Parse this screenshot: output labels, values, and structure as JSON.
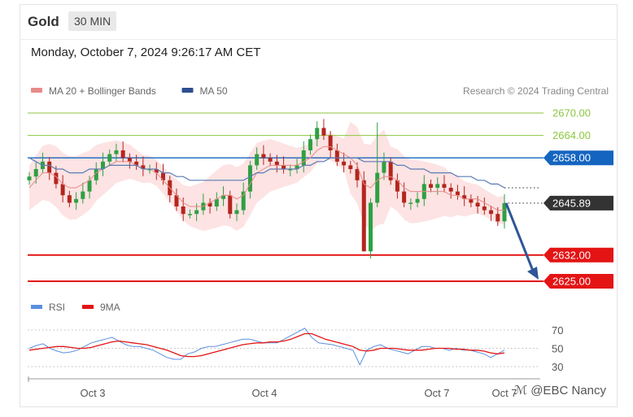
{
  "header": {
    "title": "Gold",
    "timeframe": "30 MIN"
  },
  "datetime": "Monday, October 7, 2024 9:26:17 AM CET",
  "legend": [
    {
      "label": "MA 20 + Bollinger Bands",
      "color": "#e88a8a"
    },
    {
      "label": "MA 50",
      "color": "#2d4e8f"
    }
  ],
  "copyright": "Research © 2024 Trading Central",
  "watermark": "ℳ @EBC Nancy",
  "colors": {
    "up": "#2ea043",
    "down": "#b3261e",
    "band_fill": "#fde3e3",
    "ma20": "#e88a8a",
    "ma50": "#5b7bb5",
    "resistance": "#8cc63f",
    "pivot": "#1565c0",
    "support": "#e41414",
    "price_tag": "#333333",
    "arrow": "#2f5597",
    "rsi": "#5b8fe0",
    "rsi_ma": "#e41414"
  },
  "chart_data": [
    {
      "type": "candlestick",
      "title": "Gold 30 MIN",
      "ylim": [
        2621,
        2672
      ],
      "levels": [
        {
          "value": 2670.0,
          "label": "2670.00",
          "kind": "resistance"
        },
        {
          "value": 2664.0,
          "label": "2664.00",
          "kind": "resistance"
        },
        {
          "value": 2658.0,
          "label": "2658.00",
          "kind": "pivot"
        },
        {
          "value": 2645.89,
          "label": "2645.89",
          "kind": "last-price"
        },
        {
          "value": 2632.0,
          "label": "2632.00",
          "kind": "support"
        },
        {
          "value": 2625.0,
          "label": "2625.00",
          "kind": "support"
        }
      ],
      "x_tick_labels": [
        "Oct 3",
        "Oct 4",
        "Oct 7",
        "Oct 7"
      ],
      "forecast_arrow": {
        "from": 2645.89,
        "to": 2625.0
      },
      "close_series": [
        2653,
        2655,
        2657,
        2654,
        2651,
        2648,
        2646,
        2647,
        2649,
        2652,
        2655,
        2657,
        2659,
        2660,
        2658,
        2657,
        2656,
        2655,
        2655,
        2654,
        2652,
        2648,
        2645,
        2643,
        2643,
        2644,
        2646,
        2645,
        2647,
        2648,
        2643,
        2644,
        2649,
        2656,
        2659,
        2658,
        2657,
        2656,
        2655,
        2655,
        2656,
        2660,
        2663,
        2666,
        2664,
        2660,
        2657,
        2656,
        2655,
        2652,
        2633,
        2646,
        2654,
        2657,
        2652,
        2649,
        2646,
        2646,
        2647,
        2651,
        2650,
        2651,
        2650,
        2649,
        2648,
        2647,
        2646,
        2645,
        2644,
        2643,
        2641,
        2645.89
      ],
      "ma20_series": [
        2650,
        2652,
        2654,
        2654,
        2653,
        2651,
        2650,
        2650,
        2651,
        2652,
        2654,
        2655,
        2656,
        2657,
        2657,
        2657,
        2656,
        2655,
        2655,
        2654,
        2652,
        2650,
        2648,
        2646,
        2645,
        2645,
        2645,
        2646,
        2647,
        2648,
        2648,
        2647,
        2648,
        2651,
        2654,
        2655,
        2656,
        2656,
        2656,
        2656,
        2656,
        2657,
        2658,
        2660,
        2661,
        2661,
        2660,
        2659,
        2658,
        2656,
        2651,
        2650,
        2652,
        2653,
        2653,
        2652,
        2650,
        2649,
        2649,
        2649,
        2649,
        2649,
        2649,
        2648,
        2648,
        2647,
        2647,
        2647,
        2646,
        2645,
        2644,
        2644
      ],
      "ma50_series": [
        2658,
        2657,
        2656,
        2656,
        2655,
        2655,
        2654,
        2654,
        2654,
        2655,
        2655,
        2655,
        2656,
        2656,
        2656,
        2656,
        2656,
        2655,
        2655,
        2655,
        2654,
        2654,
        2653,
        2653,
        2652,
        2652,
        2652,
        2652,
        2652,
        2652,
        2652,
        2652,
        2652,
        2653,
        2654,
        2654,
        2655,
        2655,
        2655,
        2655,
        2655,
        2656,
        2656,
        2657,
        2657,
        2658,
        2658,
        2658,
        2658,
        2658,
        2657,
        2657,
        2657,
        2657,
        2657,
        2656,
        2656,
        2655,
        2655,
        2655,
        2654,
        2654,
        2654,
        2654,
        2653,
        2653,
        2653,
        2652,
        2652,
        2651,
        2651,
        2650
      ]
    },
    {
      "type": "line",
      "title": "",
      "ylim": [
        25,
        75
      ],
      "y_tick_labels": [
        "70",
        "50",
        "30"
      ],
      "series": [
        {
          "name": "RSI",
          "color": "#5b8fe0",
          "values": [
            50,
            53,
            55,
            50,
            47,
            45,
            46,
            48,
            52,
            56,
            58,
            60,
            62,
            58,
            54,
            52,
            52,
            50,
            48,
            44,
            40,
            38,
            38,
            44,
            46,
            50,
            52,
            52,
            54,
            56,
            58,
            60,
            60,
            58,
            56,
            56,
            56,
            60,
            64,
            68,
            72,
            62,
            56,
            55,
            54,
            52,
            50,
            48,
            32,
            48,
            52,
            54,
            50,
            48,
            46,
            44,
            48,
            52,
            52,
            50,
            50,
            48,
            50,
            48,
            48,
            46,
            44,
            40,
            44,
            48
          ]
        },
        {
          "name": "9MA",
          "color": "#e41414",
          "values": [
            48,
            49,
            50,
            51,
            52,
            52,
            51,
            50,
            50,
            51,
            53,
            55,
            57,
            58,
            57,
            56,
            55,
            54,
            52,
            50,
            48,
            45,
            42,
            41,
            41,
            42,
            44,
            46,
            48,
            50,
            52,
            54,
            55,
            56,
            56,
            57,
            57,
            58,
            60,
            63,
            66,
            66,
            63,
            60,
            58,
            56,
            54,
            52,
            48,
            47,
            48,
            50,
            50,
            50,
            49,
            48,
            48,
            48,
            49,
            50,
            50,
            50,
            49,
            49,
            48,
            48,
            47,
            45,
            44,
            45
          ]
        }
      ],
      "x_tick_labels": [
        "Oct 3",
        "Oct 4",
        "Oct 7",
        "Oct 7"
      ]
    }
  ]
}
